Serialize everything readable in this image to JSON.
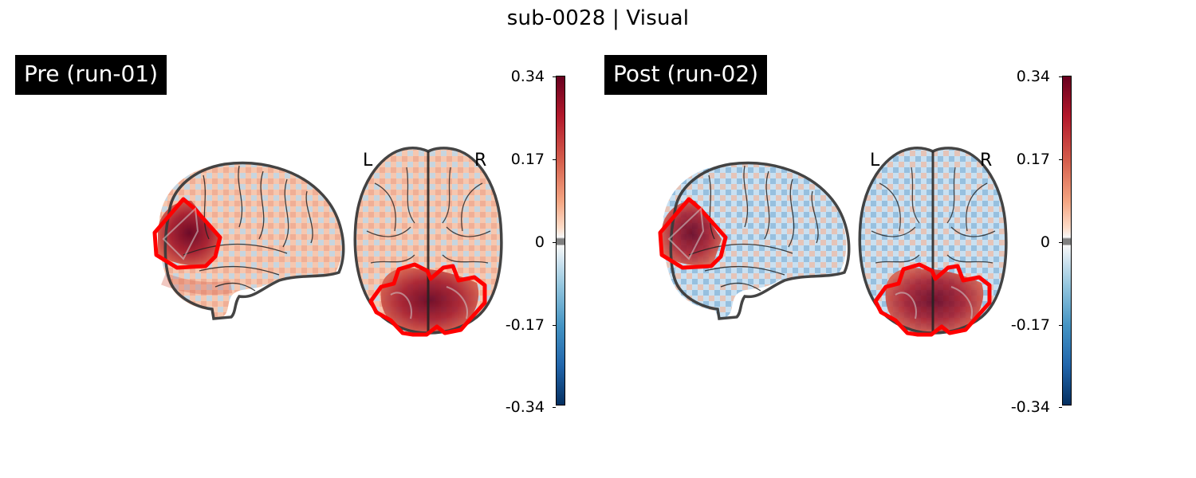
{
  "title": "sub-0028 | Visual",
  "panels": [
    {
      "label": "Pre (run-01)",
      "left_marker": "L",
      "right_marker": "R",
      "colorbar": {
        "max": 0.34,
        "min": -0.34,
        "ticks": [
          "0.34",
          "0.17",
          "0",
          "-0.17",
          "-0.34"
        ]
      }
    },
    {
      "label": "Post (run-02)",
      "left_marker": "L",
      "right_marker": "R",
      "colorbar": {
        "max": 0.34,
        "min": -0.34,
        "ticks": [
          "0.34",
          "0.17",
          "0",
          "-0.17",
          "-0.34"
        ]
      }
    }
  ],
  "colors": {
    "roi_outline": "#ff0000",
    "brain_outline": "#3a3a3a",
    "positive_max": "#67001f",
    "negative_max": "#053061",
    "zero": "#808080"
  },
  "colormap": "RdBu_r"
}
